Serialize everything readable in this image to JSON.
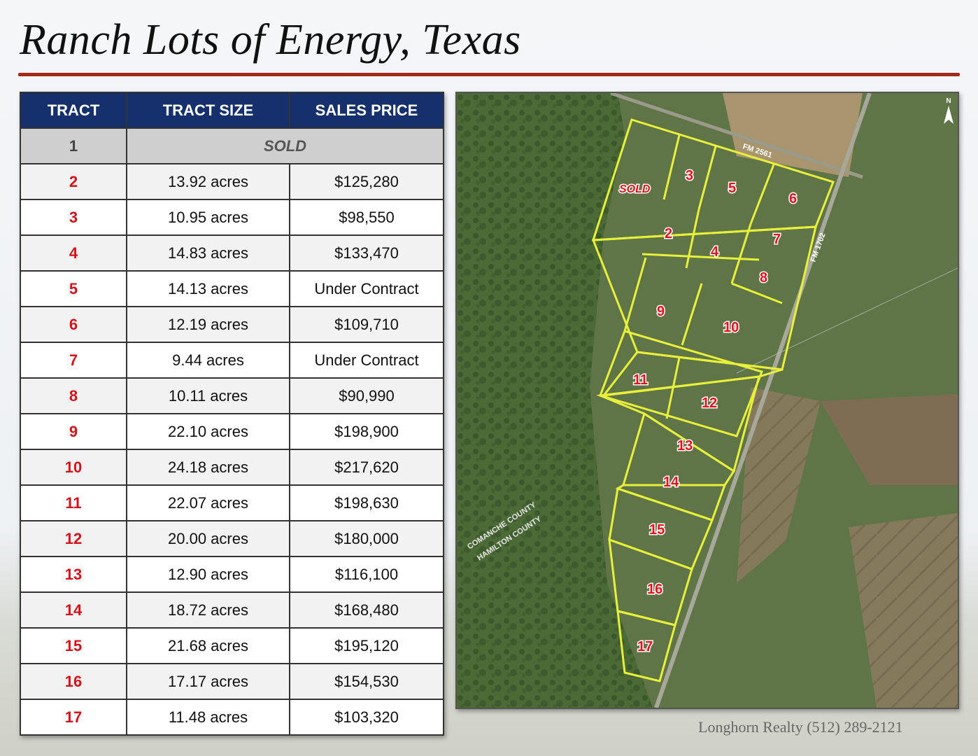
{
  "title": "Ranch Lots of Energy, Texas",
  "table": {
    "headers": [
      "TRACT",
      "TRACT SIZE",
      "SALES PRICE"
    ],
    "rows": [
      {
        "tract": "1",
        "status": "SOLD"
      },
      {
        "tract": "2",
        "size": "13.92 acres",
        "price": "$125,280"
      },
      {
        "tract": "3",
        "size": "10.95 acres",
        "price": "$98,550"
      },
      {
        "tract": "4",
        "size": "14.83 acres",
        "price": "$133,470"
      },
      {
        "tract": "5",
        "size": "14.13 acres",
        "price": "Under Contract"
      },
      {
        "tract": "6",
        "size": "12.19 acres",
        "price": "$109,710"
      },
      {
        "tract": "7",
        "size": "9.44 acres",
        "price": "Under Contract"
      },
      {
        "tract": "8",
        "size": "10.11 acres",
        "price": "$90,990"
      },
      {
        "tract": "9",
        "size": "22.10 acres",
        "price": "$198,900"
      },
      {
        "tract": "10",
        "size": "24.18 acres",
        "price": "$217,620"
      },
      {
        "tract": "11",
        "size": "22.07 acres",
        "price": "$198,630"
      },
      {
        "tract": "12",
        "size": "20.00 acres",
        "price": "$180,000"
      },
      {
        "tract": "13",
        "size": "12.90 acres",
        "price": "$116,100"
      },
      {
        "tract": "14",
        "size": "18.72 acres",
        "price": "$168,480"
      },
      {
        "tract": "15",
        "size": "21.68 acres",
        "price": "$195,120"
      },
      {
        "tract": "16",
        "size": "17.17 acres",
        "price": "$154,530"
      },
      {
        "tract": "17",
        "size": "11.48 acres",
        "price": "$103,320"
      }
    ]
  },
  "map": {
    "road_fm2561": "FM 2561",
    "road_fm1702": "FM 1702",
    "county_upper": "COMANCHE COUNTY",
    "county_lower": "HAMILTON COUNTY",
    "north_label": "N",
    "sold_label": "SOLD",
    "tract_labels": [
      "2",
      "3",
      "4",
      "5",
      "6",
      "7",
      "8",
      "9",
      "10",
      "11",
      "12",
      "13",
      "14",
      "15",
      "16",
      "17"
    ],
    "boundary_color": "#e8f03a",
    "label_color": "#e0121c"
  },
  "footer": "Longhorn Realty (512) 289-2121"
}
